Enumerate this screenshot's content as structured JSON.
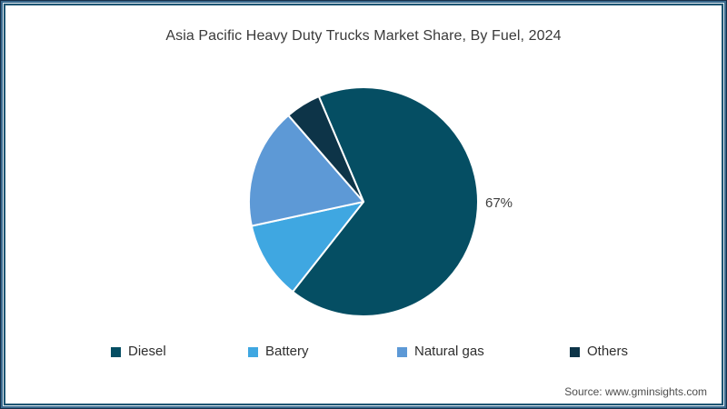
{
  "title": "Asia Pacific Heavy Duty Trucks Market Share, By Fuel, 2024",
  "chart_data": {
    "type": "pie",
    "title": "Asia Pacific Heavy Duty Trucks Market Share, By Fuel, 2024",
    "start_angle_deg": -23,
    "direction": "clockwise",
    "legend_position": "bottom",
    "slices": [
      {
        "label": "Diesel",
        "value": 67,
        "color": "#054e63",
        "data_label": "67%"
      },
      {
        "label": "Battery",
        "value": 11,
        "color": "#3fa7e1",
        "data_label": ""
      },
      {
        "label": "Natural gas",
        "value": 17,
        "color": "#5d99d6",
        "data_label": ""
      },
      {
        "label": "Others",
        "value": 5,
        "color": "#0d3448",
        "data_label": ""
      }
    ]
  },
  "footer": {
    "source": "Source: www.gminsights.com"
  }
}
